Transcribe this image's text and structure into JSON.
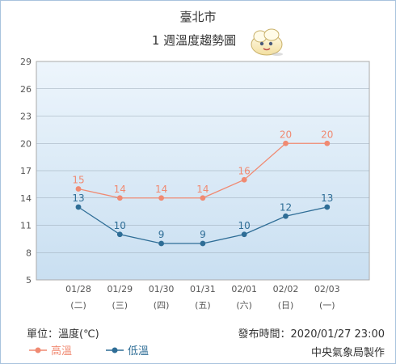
{
  "title": "臺北市",
  "subtitle": "1 週溫度趨勢圖",
  "unit_label": "單位：溫度(℃)",
  "publish_time": "發布時間：2020/01/27 23:00",
  "producer": "中央氣象局製作",
  "colors": {
    "high": "#f08a72",
    "low": "#2e6d96",
    "plot_bg_top": "#edf5fc",
    "plot_bg_bottom": "#c9dff1"
  },
  "chart_data": {
    "type": "line",
    "categories": [
      "01/28",
      "01/29",
      "01/30",
      "01/31",
      "02/01",
      "02/02",
      "02/03"
    ],
    "weekdays": [
      "(二)",
      "(三)",
      "(四)",
      "(五)",
      "(六)",
      "(日)",
      "(一)"
    ],
    "ylim": [
      5,
      29
    ],
    "yticks": [
      5,
      8,
      11,
      14,
      17,
      20,
      23,
      26,
      29
    ],
    "grid": true,
    "legend_position": "bottom-left",
    "series": [
      {
        "key": "high",
        "name": "高溫",
        "values": [
          15,
          14,
          14,
          14,
          16,
          20,
          20
        ]
      },
      {
        "key": "low",
        "name": "低溫",
        "values": [
          13,
          10,
          9,
          9,
          10,
          12,
          13
        ]
      }
    ]
  }
}
